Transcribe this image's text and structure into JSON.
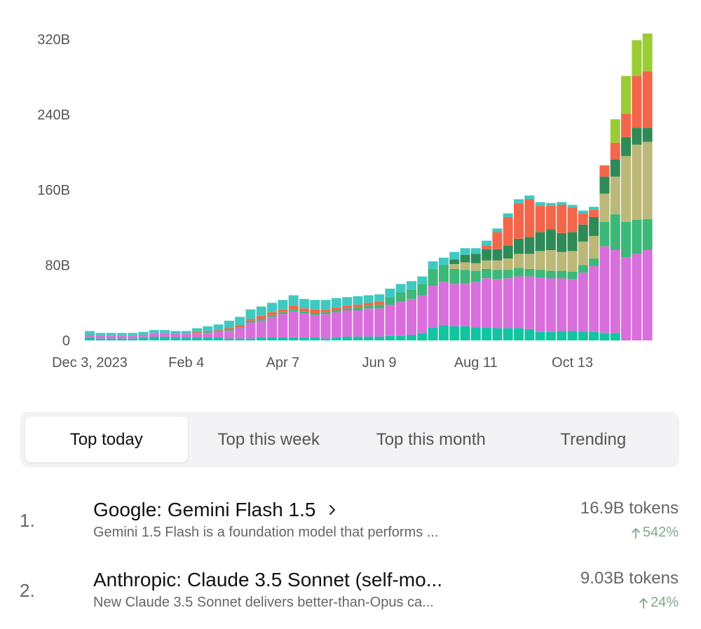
{
  "chart_data": {
    "type": "bar",
    "stacked": true,
    "yticks": [
      "0",
      "80B",
      "160B",
      "240B",
      "320B"
    ],
    "ylim": [
      0,
      320
    ],
    "xtick_labels": [
      {
        "label": "Dec 3, 2023",
        "index": 0
      },
      {
        "label": "Feb 4",
        "index": 9
      },
      {
        "label": "Apr 7",
        "index": 18
      },
      {
        "label": "Jun 9",
        "index": 27
      },
      {
        "label": "Aug 11",
        "index": 36
      },
      {
        "label": "Oct 13",
        "index": 45
      }
    ],
    "x": [
      "2023-12-03",
      "2023-12-10",
      "2023-12-17",
      "2023-12-24",
      "2023-12-31",
      "2024-01-07",
      "2024-01-14",
      "2024-01-21",
      "2024-01-28",
      "2024-02-04",
      "2024-02-11",
      "2024-02-18",
      "2024-02-25",
      "2024-03-03",
      "2024-03-10",
      "2024-03-17",
      "2024-03-24",
      "2024-03-31",
      "2024-04-07",
      "2024-04-14",
      "2024-04-21",
      "2024-04-28",
      "2024-05-05",
      "2024-05-12",
      "2024-05-19",
      "2024-05-26",
      "2024-06-02",
      "2024-06-09",
      "2024-06-16",
      "2024-06-23",
      "2024-06-30",
      "2024-07-07",
      "2024-07-14",
      "2024-07-21",
      "2024-07-28",
      "2024-08-04",
      "2024-08-11",
      "2024-08-18",
      "2024-08-25",
      "2024-09-01",
      "2024-09-08",
      "2024-09-15",
      "2024-09-22",
      "2024-09-29",
      "2024-10-06",
      "2024-10-13",
      "2024-10-20",
      "2024-10-27",
      "2024-11-03",
      "2024-11-10",
      "2024-11-17",
      "2024-11-24",
      "2024-12-01"
    ],
    "series": [
      {
        "color": "#12c4a0",
        "values": [
          3,
          2,
          2,
          2,
          2,
          3,
          4,
          4,
          3,
          3,
          3,
          3,
          3,
          2,
          2,
          2,
          3,
          3,
          3,
          3,
          3,
          3,
          2,
          3,
          4,
          4,
          4,
          4,
          5,
          5,
          6,
          8,
          14,
          16,
          15,
          15,
          14,
          14,
          13,
          13,
          13,
          12,
          9,
          9,
          10,
          10,
          9,
          9,
          8,
          8,
          0,
          0,
          0
        ]
      },
      {
        "color": "#d96fdc",
        "values": [
          3,
          3,
          3,
          3,
          3,
          3,
          4,
          4,
          4,
          4,
          4,
          5,
          6,
          8,
          11,
          17,
          18,
          22,
          25,
          28,
          26,
          24,
          26,
          27,
          28,
          28,
          30,
          30,
          33,
          36,
          38,
          40,
          44,
          46,
          45,
          46,
          48,
          52,
          52,
          53,
          55,
          56,
          58,
          57,
          56,
          55,
          63,
          70,
          92,
          88,
          88,
          92,
          96
        ]
      },
      {
        "color": "#3cb878",
        "values": [
          0,
          0,
          0,
          0,
          0,
          0,
          0,
          0,
          0,
          0,
          1,
          1,
          1,
          1,
          1,
          2,
          2,
          2,
          2,
          2,
          2,
          2,
          2,
          2,
          2,
          3,
          3,
          4,
          8,
          10,
          10,
          12,
          18,
          18,
          16,
          14,
          12,
          10,
          10,
          9,
          9,
          8,
          8,
          8,
          8,
          8,
          8,
          8,
          26,
          38,
          38,
          36,
          33
        ]
      },
      {
        "color": "#bcb878",
        "values": [
          0,
          0,
          0,
          0,
          0,
          0,
          0,
          0,
          0,
          0,
          0,
          0,
          0,
          0,
          0,
          0,
          0,
          0,
          0,
          0,
          0,
          0,
          0,
          0,
          0,
          0,
          0,
          0,
          0,
          0,
          0,
          0,
          0,
          0,
          5,
          8,
          8,
          9,
          10,
          12,
          15,
          16,
          20,
          22,
          20,
          22,
          25,
          24,
          30,
          40,
          70,
          80,
          82
        ]
      },
      {
        "color": "#2e8b57",
        "values": [
          0,
          0,
          0,
          0,
          0,
          0,
          0,
          0,
          0,
          0,
          0,
          0,
          0,
          0,
          0,
          0,
          0,
          0,
          0,
          0,
          0,
          0,
          0,
          0,
          0,
          0,
          0,
          0,
          0,
          0,
          0,
          0,
          0,
          0,
          5,
          8,
          10,
          12,
          12,
          14,
          16,
          18,
          20,
          22,
          20,
          20,
          18,
          20,
          18,
          18,
          20,
          18,
          15
        ]
      },
      {
        "color": "#f4664a",
        "values": [
          0,
          0,
          0,
          0,
          0,
          0,
          0,
          0,
          0,
          0,
          1,
          1,
          1,
          2,
          2,
          2,
          3,
          3,
          3,
          4,
          3,
          4,
          3,
          3,
          3,
          3,
          3,
          3,
          0,
          0,
          0,
          0,
          0,
          0,
          0,
          0,
          0,
          4,
          18,
          30,
          38,
          40,
          28,
          25,
          30,
          26,
          12,
          8,
          12,
          18,
          25,
          55,
          60
        ]
      },
      {
        "color": "#9ccc34",
        "values": [
          0,
          0,
          0,
          0,
          0,
          0,
          0,
          0,
          0,
          0,
          0,
          0,
          0,
          0,
          0,
          0,
          0,
          0,
          0,
          0,
          0,
          0,
          0,
          0,
          0,
          0,
          0,
          0,
          0,
          0,
          0,
          0,
          0,
          0,
          0,
          0,
          0,
          0,
          0,
          0,
          0,
          0,
          0,
          0,
          0,
          0,
          0,
          0,
          0,
          25,
          40,
          38,
          40
        ]
      },
      {
        "color": "#40c9c0",
        "values": [
          4,
          3,
          3,
          3,
          3,
          3,
          3,
          3,
          3,
          3,
          4,
          5,
          6,
          8,
          9,
          10,
          10,
          10,
          10,
          11,
          10,
          10,
          10,
          10,
          9,
          9,
          8,
          8,
          9,
          9,
          9,
          8,
          8,
          8,
          8,
          7,
          6,
          5,
          4,
          4,
          4,
          4,
          4,
          3,
          3,
          3,
          3,
          3,
          0,
          0,
          0,
          0,
          0
        ]
      }
    ]
  },
  "tabs": [
    {
      "label": "Top today",
      "active": true
    },
    {
      "label": "Top this week",
      "active": false
    },
    {
      "label": "Top this month",
      "active": false
    },
    {
      "label": "Trending",
      "active": false
    }
  ],
  "rankings": [
    {
      "rank": "1.",
      "name": "Google: Gemini Flash 1.5",
      "has_chevron": true,
      "description": "Gemini 1.5 Flash is a foundation model that performs ...",
      "tokens": "16.9B tokens",
      "change": "542%"
    },
    {
      "rank": "2.",
      "name": "Anthropic: Claude 3.5 Sonnet (self-mo...",
      "has_chevron": false,
      "description": "New Claude 3.5 Sonnet delivers better-than-Opus ca...",
      "tokens": "9.03B tokens",
      "change": "24%"
    }
  ]
}
